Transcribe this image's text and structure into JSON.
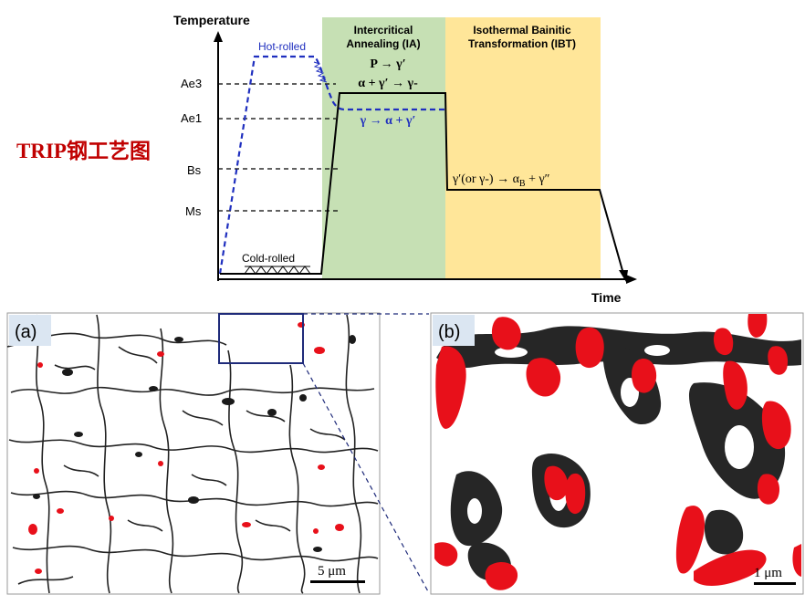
{
  "diagram": {
    "axis_y_label": "Temperature",
    "axis_x_label": "Time",
    "levels": [
      {
        "key": "ae3",
        "label": "Ae3"
      },
      {
        "key": "ae1",
        "label": "Ae1"
      },
      {
        "key": "bs",
        "label": "Bs"
      },
      {
        "key": "ms",
        "label": "Ms"
      }
    ],
    "hot_rolled_label": "Hot-rolled",
    "cold_rolled_label": "Cold-rolled",
    "ia_title_line1": "Intercritical",
    "ia_title_line2": "Annealing (IA)",
    "ibt_title_line1": "Isothermal Bainitic",
    "ibt_title_line2": "Transformation (IBT)",
    "reaction_p": "P → γ′",
    "reaction_alpha": "α + γ′ → γ-",
    "reaction_hot": "γ → α + γ′",
    "reaction_ibt": "γ′(or γ-) → α",
    "reaction_ibt_sub": "B",
    "reaction_ibt_tail": " + γ″",
    "colors": {
      "ia_zone": "#c6e0b4",
      "ibt_zone": "#ffe699",
      "hot_rolled_path": "#1f2fbf",
      "cold_rolled_path": "#000000",
      "phase_red": "#e8101a"
    }
  },
  "overlay_title": "TRIP钢工艺图",
  "micrographs": {
    "a_label": "(a)",
    "b_label": "(b)",
    "scale_a": "5 μm",
    "scale_b": "1 μm"
  }
}
